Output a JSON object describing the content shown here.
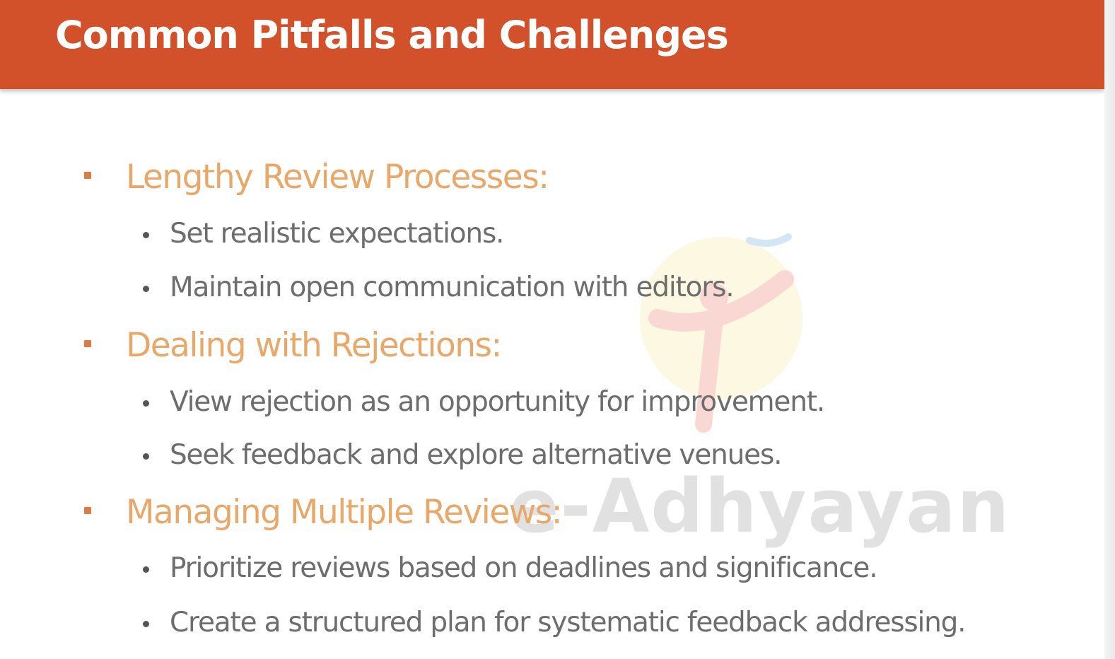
{
  "slide": {
    "title": "Common Pitfalls and Challenges",
    "watermark": "e-Adhyayan",
    "sections": [
      {
        "heading": "Lengthy Review Processes:",
        "items": [
          "Set realistic expectations.",
          "Maintain open communication with editors."
        ]
      },
      {
        "heading": "Dealing with Rejections:",
        "items": [
          "View rejection as an opportunity for improvement.",
          "Seek feedback and explore alternative venues."
        ]
      },
      {
        "heading": "Managing Multiple Reviews:",
        "items": [
          "Prioritize reviews based on deadlines and significance.",
          "Create a structured plan for systematic feedback addressing."
        ]
      }
    ]
  },
  "colors": {
    "title_bar": "#d2502a",
    "heading": "#e8a86a",
    "body_text": "#6d6d6d"
  }
}
